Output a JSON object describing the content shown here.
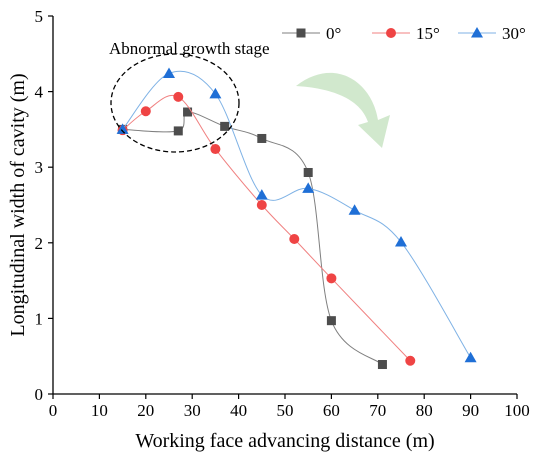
{
  "chart_data": {
    "type": "scatter",
    "title": "",
    "xlabel": "Working face advancing distance (m)",
    "ylabel": "Longitudinal width of cavity (m)",
    "xlim": [
      0,
      100
    ],
    "ylim": [
      0,
      5
    ],
    "xticks": [
      "0",
      "10",
      "20",
      "30",
      "40",
      "50",
      "60",
      "70",
      "80",
      "90",
      "100"
    ],
    "yticks": [
      "0",
      "1",
      "2",
      "3",
      "4",
      "5"
    ],
    "grid": false,
    "legend_placement": "top-right",
    "series": [
      {
        "name": "0°",
        "marker": "square",
        "color": "#4d4d4d",
        "line_color": "#7f7f7f",
        "x": [
          15,
          27,
          29,
          37,
          45,
          55,
          60,
          71
        ],
        "y": [
          3.5,
          3.48,
          3.73,
          3.54,
          3.38,
          2.93,
          0.97,
          0.39
        ]
      },
      {
        "name": "15°",
        "marker": "circle",
        "color": "#ef4444",
        "line_color": "#f08080",
        "x": [
          15,
          20,
          27,
          35,
          45,
          52,
          60,
          77
        ],
        "y": [
          3.49,
          3.74,
          3.93,
          3.24,
          2.5,
          2.05,
          1.53,
          0.44
        ]
      },
      {
        "name": "30°",
        "marker": "triangle",
        "color": "#1f6fd6",
        "line_color": "#7fb2e5",
        "x": [
          15,
          25,
          35,
          45,
          55,
          65,
          75,
          90
        ],
        "y": [
          3.5,
          4.24,
          3.97,
          2.63,
          2.72,
          2.43,
          2.01,
          0.48
        ]
      }
    ],
    "annotations": [
      {
        "text": "Abnormal growth stage",
        "shape": "dashed-ellipse",
        "cx": 26,
        "cy": 3.8
      },
      {
        "shape": "curved-arrow",
        "color": "#c6e3c0"
      }
    ]
  }
}
